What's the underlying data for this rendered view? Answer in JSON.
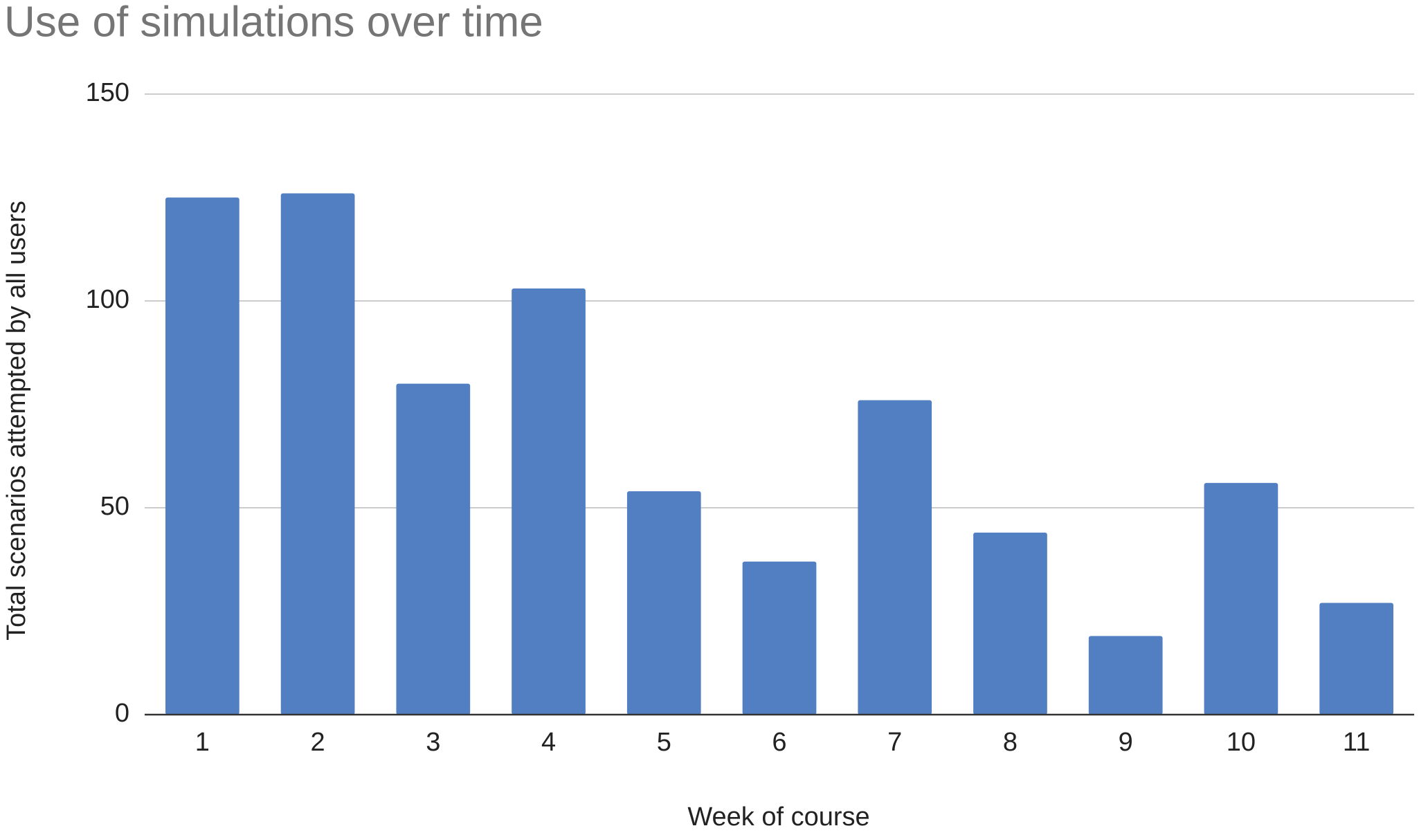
{
  "chart_data": {
    "type": "bar",
    "title": "Use of simulations over time",
    "x_label": "Week of course",
    "y_label": "Total scenarios attempted by all users",
    "categories": [
      "1",
      "2",
      "3",
      "4",
      "5",
      "6",
      "7",
      "8",
      "9",
      "10",
      "11"
    ],
    "values": [
      125,
      126,
      80,
      103,
      54,
      37,
      76,
      44,
      19,
      56,
      27
    ],
    "color": "#527fc2",
    "ylim": [
      0,
      150
    ],
    "yticks": [
      0,
      50,
      100,
      150
    ],
    "grid": true
  }
}
